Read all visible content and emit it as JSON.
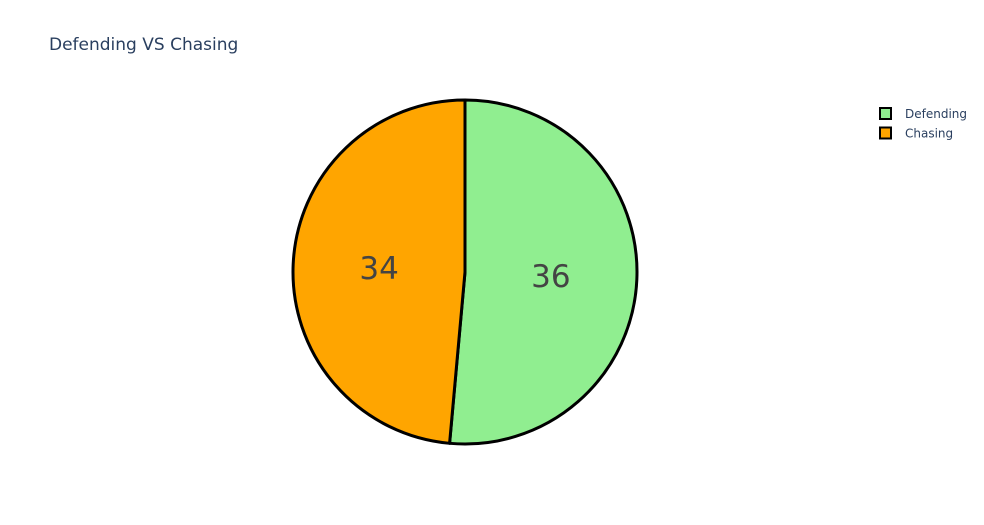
{
  "chart_data": {
    "type": "pie",
    "title": "Defending VS Chasing",
    "labels": [
      "Defending",
      "Chasing"
    ],
    "values": [
      36,
      34
    ],
    "colors": [
      "#90ee90",
      "#ffa500"
    ],
    "border_color": "#000000",
    "text_info": "value",
    "direction": "clockwise",
    "start_angle_deg": 90,
    "legend_position": "top-right"
  }
}
